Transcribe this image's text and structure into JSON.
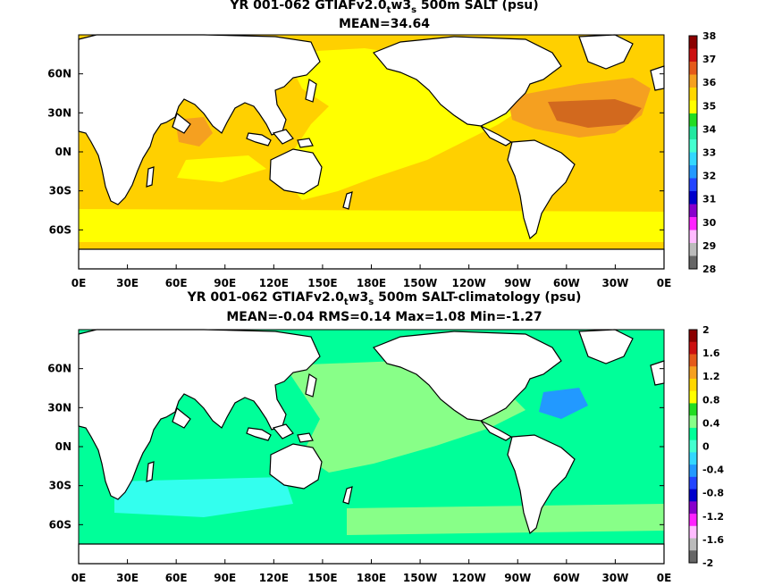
{
  "top_panel": {
    "title_pre": "YR 001-062 GTIAFv2.0",
    "title_sub1": "t",
    "title_mid": "w3",
    "title_sub2": "s",
    "title_post": " 500m SALT (psu)",
    "subtitle": "MEAN=34.64",
    "colorbar_labels": [
      "38",
      "37",
      "36",
      "35",
      "34",
      "33",
      "32",
      "31",
      "30",
      "29",
      "28"
    ],
    "colorbar_colors": [
      "#8b0000",
      "#cc1010",
      "#e55a1a",
      "#f5a020",
      "#ffd700",
      "#ffff00",
      "#22dd22",
      "#22e8a0",
      "#44ffd0",
      "#33d8ff",
      "#2299ff",
      "#2244ff",
      "#0000cc",
      "#8800cc",
      "#ff22ff",
      "#ffbbff",
      "#bbbbbb",
      "#666666"
    ]
  },
  "bottom_panel": {
    "title_pre": "YR 001-062 GTIAFv2.0",
    "title_sub1": "t",
    "title_mid": "w3",
    "title_sub2": "s",
    "title_post": " 500m SALT-climatology (psu)",
    "subtitle": "MEAN=-0.04   RMS=0.14   Max=1.08   Min=-1.27",
    "colorbar_labels": [
      "2",
      "1.6",
      "1.2",
      "0.8",
      "0.4",
      "0",
      "-0.4",
      "-0.8",
      "-1.2",
      "-1.6",
      "-2"
    ],
    "colorbar_colors": [
      "#8b0000",
      "#cc1010",
      "#e55a1a",
      "#f5a020",
      "#ffd700",
      "#ffff00",
      "#22dd22",
      "#88ff88",
      "#00ff99",
      "#44ffd0",
      "#33d8ff",
      "#2299ff",
      "#2244ff",
      "#0000cc",
      "#8800cc",
      "#ff22ff",
      "#ffbbff",
      "#bbbbbb",
      "#666666"
    ]
  },
  "lat_labels": [
    "60N",
    "30N",
    "0N",
    "30S",
    "60S"
  ],
  "lon_labels": [
    "0E",
    "30E",
    "60E",
    "90E",
    "120E",
    "150E",
    "180E",
    "150W",
    "120W",
    "90W",
    "60W",
    "30W",
    "0E"
  ],
  "colors": {
    "top_ocean": "#ffd000",
    "top_low": "#ffff00",
    "top_high": "#f5a020",
    "top_highest": "#d2691e",
    "top_med": "#8b1010",
    "bot_ocean": "#00ff99",
    "bot_pos": "#88ff88",
    "bot_neg": "#33ffee",
    "bot_neg2": "#2299ff",
    "land": "#ffffff"
  }
}
